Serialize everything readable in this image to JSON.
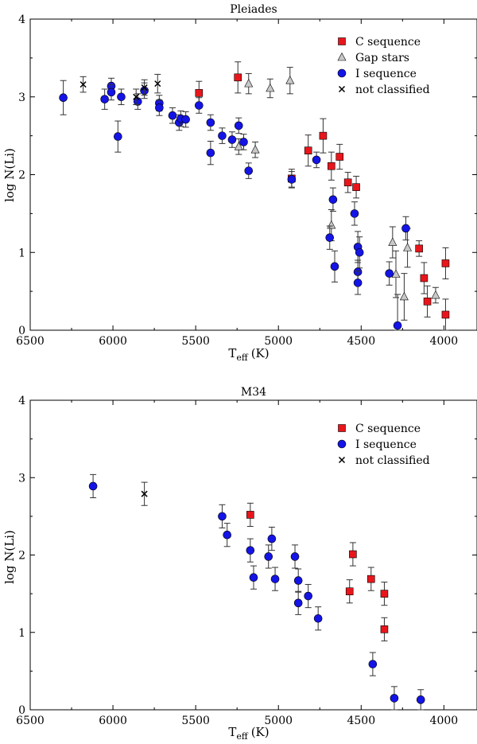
{
  "chart_data": [
    {
      "type": "scatter",
      "title": "Pleiades",
      "xlabel_main": "T",
      "xlabel_sub": "eff",
      "xlabel_unit": "(K)",
      "ylabel": "log N(Li)",
      "xlim": [
        6500,
        3800
      ],
      "ylim": [
        0,
        4
      ],
      "xticks": [
        6500,
        6000,
        5500,
        5000,
        4500,
        4000
      ],
      "yticks": [
        0,
        1,
        2,
        3,
        4
      ],
      "legend_position": "top-right",
      "series": [
        {
          "name": "C sequence",
          "marker": "square",
          "color": "#e8161c",
          "points": [
            {
              "x": 5480,
              "y": 3.05,
              "err": 0.15
            },
            {
              "x": 5245,
              "y": 3.25,
              "err": 0.2
            },
            {
              "x": 4920,
              "y": 1.95,
              "err": 0.12
            },
            {
              "x": 4820,
              "y": 2.31,
              "err": 0.2
            },
            {
              "x": 4730,
              "y": 2.5,
              "err": 0.22
            },
            {
              "x": 4680,
              "y": 2.11,
              "err": 0.18
            },
            {
              "x": 4630,
              "y": 2.23,
              "err": 0.16
            },
            {
              "x": 4580,
              "y": 1.9,
              "err": 0.13
            },
            {
              "x": 4530,
              "y": 1.84,
              "err": 0.14
            },
            {
              "x": 4150,
              "y": 1.05,
              "err": 0.1
            },
            {
              "x": 4120,
              "y": 0.67,
              "err": 0.2
            },
            {
              "x": 4100,
              "y": 0.37,
              "err": 0.2
            },
            {
              "x": 3990,
              "y": 0.86,
              "err": 0.2
            },
            {
              "x": 3990,
              "y": 0.2,
              "err": 0.2
            }
          ]
        },
        {
          "name": "Gap stars",
          "marker": "triangle",
          "color": "#c8c8c8",
          "points": [
            {
              "x": 5240,
              "y": 2.36,
              "err": 0.1
            },
            {
              "x": 5180,
              "y": 3.17,
              "err": 0.13
            },
            {
              "x": 5140,
              "y": 2.32,
              "err": 0.1
            },
            {
              "x": 5050,
              "y": 3.11,
              "err": 0.12
            },
            {
              "x": 4930,
              "y": 3.21,
              "err": 0.17
            },
            {
              "x": 4680,
              "y": 1.35,
              "err": 0.2
            },
            {
              "x": 4310,
              "y": 1.13,
              "err": 0.2
            },
            {
              "x": 4290,
              "y": 0.72,
              "err": 0.3
            },
            {
              "x": 4240,
              "y": 0.43,
              "err": 0.3
            },
            {
              "x": 4220,
              "y": 1.06,
              "err": 0.25
            },
            {
              "x": 4050,
              "y": 0.45,
              "err": 0.1
            }
          ]
        },
        {
          "name": "I sequence",
          "marker": "circle",
          "color": "#1414e6",
          "points": [
            {
              "x": 6300,
              "y": 2.99,
              "err": 0.22
            },
            {
              "x": 6050,
              "y": 2.97,
              "err": 0.13
            },
            {
              "x": 6010,
              "y": 3.14,
              "err": 0.1
            },
            {
              "x": 6010,
              "y": 3.06,
              "err": 0.1
            },
            {
              "x": 5970,
              "y": 2.49,
              "err": 0.2
            },
            {
              "x": 5950,
              "y": 3.0,
              "err": 0.1
            },
            {
              "x": 5850,
              "y": 2.94,
              "err": 0.1
            },
            {
              "x": 5810,
              "y": 3.08,
              "err": 0.1
            },
            {
              "x": 5720,
              "y": 2.92,
              "err": 0.1
            },
            {
              "x": 5720,
              "y": 2.86,
              "err": 0.1
            },
            {
              "x": 5640,
              "y": 2.76,
              "err": 0.1
            },
            {
              "x": 5600,
              "y": 2.67,
              "err": 0.1
            },
            {
              "x": 5590,
              "y": 2.72,
              "err": 0.1
            },
            {
              "x": 5560,
              "y": 2.71,
              "err": 0.1
            },
            {
              "x": 5480,
              "y": 2.89,
              "err": 0.1
            },
            {
              "x": 5410,
              "y": 2.67,
              "err": 0.1
            },
            {
              "x": 5410,
              "y": 2.28,
              "err": 0.15
            },
            {
              "x": 5340,
              "y": 2.5,
              "err": 0.1
            },
            {
              "x": 5280,
              "y": 2.45,
              "err": 0.1
            },
            {
              "x": 5240,
              "y": 2.63,
              "err": 0.1
            },
            {
              "x": 5210,
              "y": 2.42,
              "err": 0.1
            },
            {
              "x": 5180,
              "y": 2.05,
              "err": 0.1
            },
            {
              "x": 4920,
              "y": 1.94,
              "err": 0.1
            },
            {
              "x": 4770,
              "y": 2.19,
              "err": 0.1
            },
            {
              "x": 4690,
              "y": 1.19,
              "err": 0.15
            },
            {
              "x": 4670,
              "y": 1.68,
              "err": 0.15
            },
            {
              "x": 4660,
              "y": 0.82,
              "err": 0.2
            },
            {
              "x": 4540,
              "y": 1.5,
              "err": 0.15
            },
            {
              "x": 4520,
              "y": 1.07,
              "err": 0.2
            },
            {
              "x": 4510,
              "y": 1.0,
              "err": 0.2
            },
            {
              "x": 4520,
              "y": 0.75,
              "err": 0.15
            },
            {
              "x": 4520,
              "y": 0.61,
              "err": 0.15
            },
            {
              "x": 4330,
              "y": 0.73,
              "err": 0.15
            },
            {
              "x": 4280,
              "y": 0.06,
              "err": 0.4
            },
            {
              "x": 4230,
              "y": 1.31,
              "err": 0.15
            }
          ]
        },
        {
          "name": "not classified",
          "marker": "cross",
          "color": "#000000",
          "points": [
            {
              "x": 6180,
              "y": 3.16,
              "err": 0.1
            },
            {
              "x": 5860,
              "y": 3.0,
              "err": 0.1
            },
            {
              "x": 5810,
              "y": 3.12,
              "err": 0.1
            },
            {
              "x": 5730,
              "y": 3.17,
              "err": 0.12
            }
          ]
        }
      ]
    },
    {
      "type": "scatter",
      "title": "M34",
      "xlabel_main": "T",
      "xlabel_sub": "eff",
      "xlabel_unit": "(K)",
      "ylabel": "log N(Li)",
      "xlim": [
        6500,
        3800
      ],
      "ylim": [
        0,
        4
      ],
      "xticks": [
        6500,
        6000,
        5500,
        5000,
        4500,
        4000
      ],
      "yticks": [
        0,
        1,
        2,
        3,
        4
      ],
      "legend_position": "top-right",
      "series": [
        {
          "name": "C sequence",
          "marker": "square",
          "color": "#e8161c",
          "points": [
            {
              "x": 5170,
              "y": 2.52,
              "err": 0.15
            },
            {
              "x": 4550,
              "y": 2.01,
              "err": 0.15
            },
            {
              "x": 4570,
              "y": 1.53,
              "err": 0.15
            },
            {
              "x": 4440,
              "y": 1.69,
              "err": 0.15
            },
            {
              "x": 4360,
              "y": 1.5,
              "err": 0.15
            },
            {
              "x": 4360,
              "y": 1.04,
              "err": 0.15
            }
          ]
        },
        {
          "name": "I sequence",
          "marker": "circle",
          "color": "#1414e6",
          "points": [
            {
              "x": 6120,
              "y": 2.89,
              "err": 0.15
            },
            {
              "x": 5340,
              "y": 2.5,
              "err": 0.15
            },
            {
              "x": 5310,
              "y": 2.26,
              "err": 0.15
            },
            {
              "x": 5170,
              "y": 2.06,
              "err": 0.15
            },
            {
              "x": 5150,
              "y": 1.71,
              "err": 0.15
            },
            {
              "x": 5060,
              "y": 1.98,
              "err": 0.15
            },
            {
              "x": 5040,
              "y": 2.21,
              "err": 0.15
            },
            {
              "x": 5020,
              "y": 1.69,
              "err": 0.15
            },
            {
              "x": 4900,
              "y": 1.98,
              "err": 0.15
            },
            {
              "x": 4880,
              "y": 1.67,
              "err": 0.15
            },
            {
              "x": 4880,
              "y": 1.38,
              "err": 0.15
            },
            {
              "x": 4820,
              "y": 1.47,
              "err": 0.15
            },
            {
              "x": 4760,
              "y": 1.18,
              "err": 0.15
            },
            {
              "x": 4430,
              "y": 0.59,
              "err": 0.15
            },
            {
              "x": 4300,
              "y": 0.15,
              "err": 0.15
            },
            {
              "x": 4140,
              "y": 0.13,
              "err": 0.13
            }
          ]
        },
        {
          "name": "not classified",
          "marker": "cross",
          "color": "#000000",
          "points": [
            {
              "x": 5810,
              "y": 2.79,
              "err": 0.15
            }
          ]
        }
      ]
    }
  ]
}
